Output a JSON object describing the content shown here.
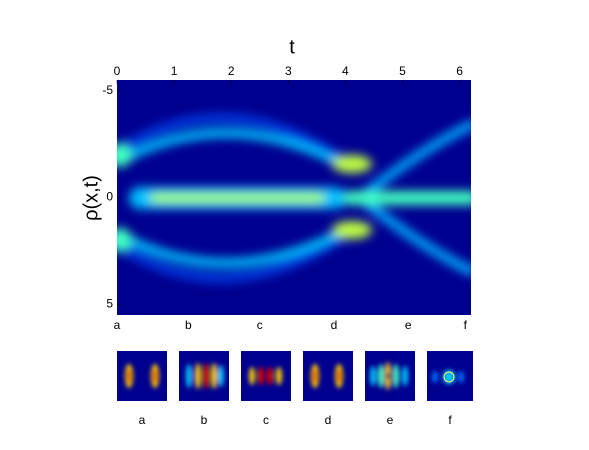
{
  "chart_data": {
    "type": "heatmap",
    "title": "t",
    "y_label": "ρ(x,t)",
    "xlim": [
      0,
      6.2
    ],
    "xticks": [
      0,
      1,
      2,
      3,
      4,
      5,
      6
    ],
    "ylim": [
      -5.5,
      5.5
    ],
    "yticks": [
      -5,
      0,
      5
    ],
    "y_inverted": true,
    "x_axis_side": "top",
    "frame_labels": {
      "labels": [
        "a",
        "b",
        "c",
        "d",
        "e",
        "f"
      ],
      "x": [
        0,
        1.25,
        2.5,
        3.8,
        5.1,
        6.1
      ]
    },
    "thumbnail_labels": [
      "a",
      "b",
      "c",
      "d",
      "e",
      "f"
    ]
  }
}
